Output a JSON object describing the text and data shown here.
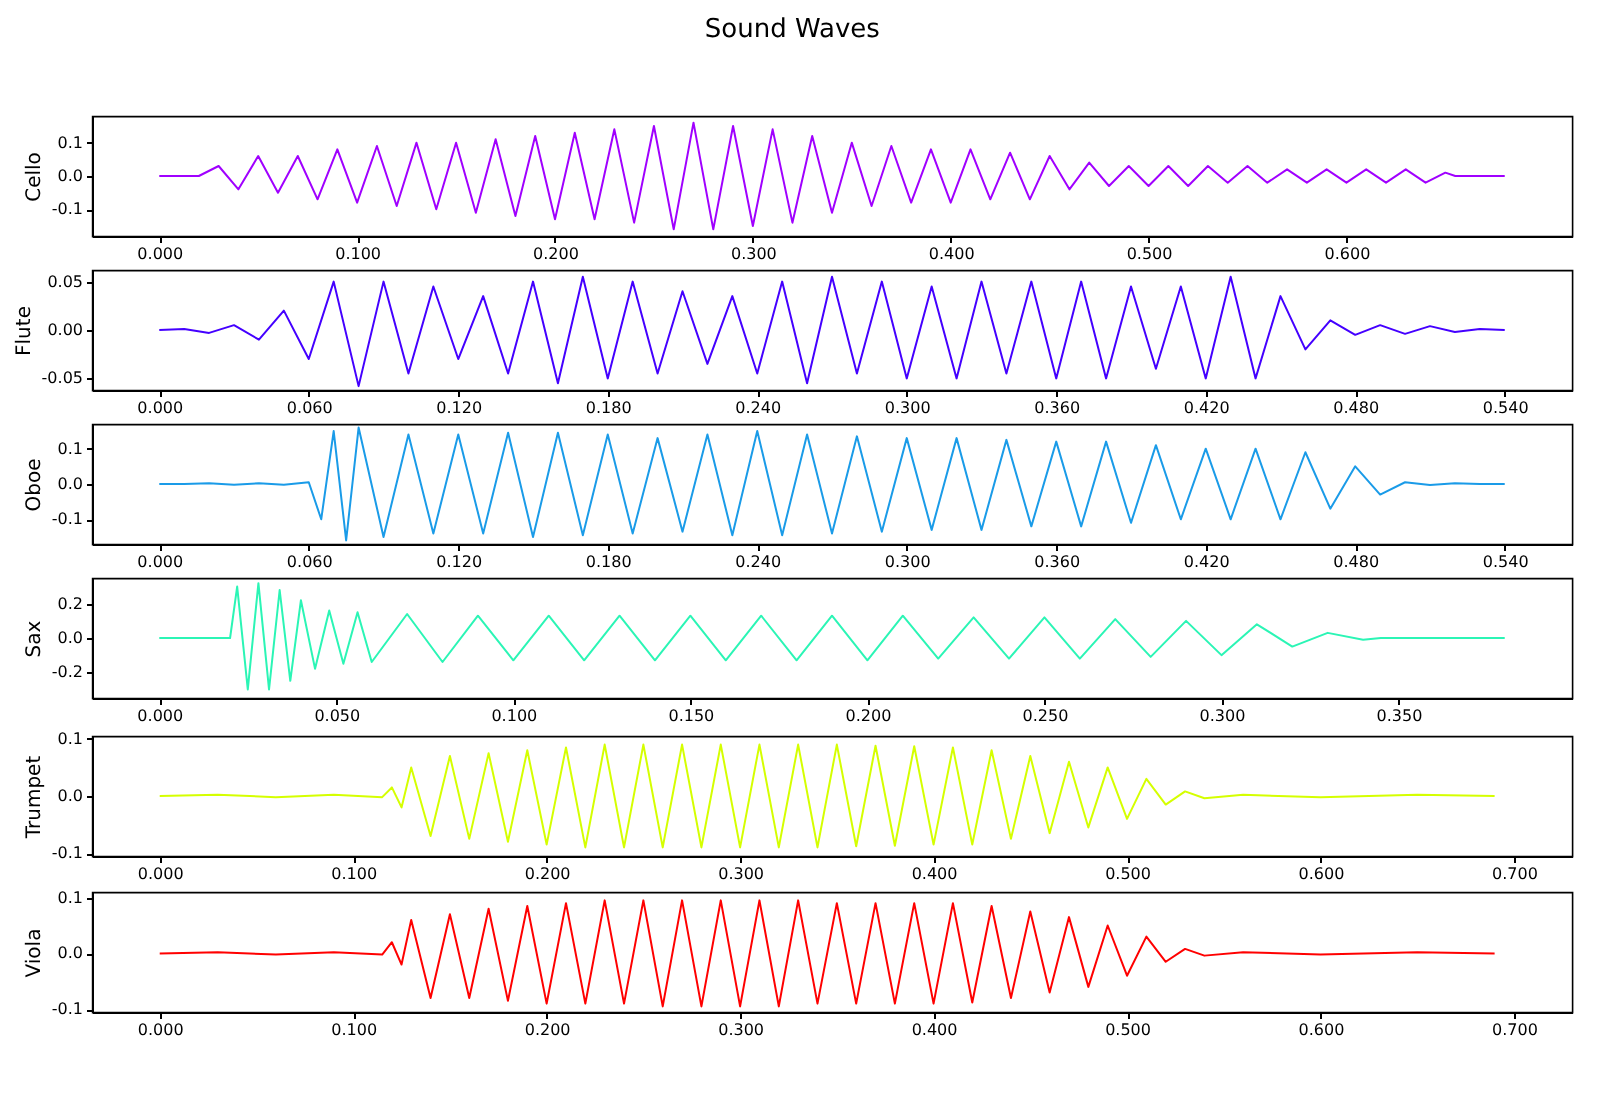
{
  "chart_data": [
    {
      "type": "line",
      "title": "Sound Waves",
      "ylabel": "Cello",
      "grid": false,
      "marker": "none",
      "line_style": "solid",
      "series": [
        {
          "color": "#a000ff",
          "x": [
            0,
            0.02,
            0.03,
            0.04,
            0.05,
            0.06,
            0.07,
            0.08,
            0.09,
            0.1,
            0.11,
            0.12,
            0.13,
            0.14,
            0.15,
            0.16,
            0.17,
            0.18,
            0.19,
            0.2,
            0.21,
            0.22,
            0.23,
            0.24,
            0.25,
            0.26,
            0.27,
            0.28,
            0.29,
            0.3,
            0.31,
            0.32,
            0.33,
            0.34,
            0.35,
            0.36,
            0.37,
            0.38,
            0.39,
            0.4,
            0.41,
            0.42,
            0.43,
            0.44,
            0.45,
            0.46,
            0.47,
            0.48,
            0.49,
            0.5,
            0.51,
            0.52,
            0.53,
            0.54,
            0.55,
            0.56,
            0.57,
            0.58,
            0.59,
            0.6,
            0.61,
            0.62,
            0.63,
            0.64,
            0.65,
            0.655,
            0.68
          ],
          "values": [
            0,
            0,
            0.03,
            -0.04,
            0.06,
            -0.05,
            0.06,
            -0.07,
            0.08,
            -0.08,
            0.09,
            -0.09,
            0.1,
            -0.1,
            0.1,
            -0.11,
            0.11,
            -0.12,
            0.12,
            -0.13,
            0.13,
            -0.13,
            0.14,
            -0.14,
            0.15,
            -0.16,
            0.16,
            -0.16,
            0.15,
            -0.15,
            0.14,
            -0.14,
            0.12,
            -0.11,
            0.1,
            -0.09,
            0.09,
            -0.08,
            0.08,
            -0.08,
            0.08,
            -0.07,
            0.07,
            -0.07,
            0.06,
            -0.04,
            0.04,
            -0.03,
            0.03,
            -0.03,
            0.03,
            -0.03,
            0.03,
            -0.02,
            0.03,
            -0.02,
            0.02,
            -0.02,
            0.02,
            -0.02,
            0.02,
            -0.02,
            0.02,
            -0.02,
            0.01,
            0,
            0
          ]
        }
      ],
      "xlim": [
        -0.034,
        0.714
      ],
      "ylim": [
        -0.18,
        0.18
      ],
      "xticks": [
        {
          "value": 0,
          "label": "0.000"
        },
        {
          "value": 0.1,
          "label": "0.100"
        },
        {
          "value": 0.2,
          "label": "0.200"
        },
        {
          "value": 0.3,
          "label": "0.300"
        },
        {
          "value": 0.4,
          "label": "0.400"
        },
        {
          "value": 0.5,
          "label": "0.500"
        },
        {
          "value": 0.6,
          "label": "0.600"
        }
      ],
      "yticks": [
        {
          "value": -0.1,
          "label": "-0.1"
        },
        {
          "value": 0,
          "label": "0.0"
        },
        0.1
      ]
    },
    {
      "type": "line",
      "ylabel": "Flute",
      "grid": false,
      "marker": "none",
      "line_style": "solid",
      "series": [
        {
          "color": "#4400ff",
          "x": [
            0,
            0.01,
            0.02,
            0.03,
            0.04,
            0.05,
            0.06,
            0.07,
            0.08,
            0.09,
            0.1,
            0.11,
            0.12,
            0.13,
            0.14,
            0.15,
            0.16,
            0.17,
            0.18,
            0.19,
            0.2,
            0.21,
            0.22,
            0.23,
            0.24,
            0.25,
            0.26,
            0.27,
            0.28,
            0.29,
            0.3,
            0.31,
            0.32,
            0.33,
            0.34,
            0.35,
            0.36,
            0.37,
            0.38,
            0.39,
            0.4,
            0.41,
            0.42,
            0.43,
            0.44,
            0.45,
            0.46,
            0.47,
            0.48,
            0.49,
            0.5,
            0.51,
            0.52,
            0.53,
            0.54
          ],
          "values": [
            0,
            0.001,
            -0.003,
            0.005,
            -0.01,
            0.02,
            -0.03,
            0.05,
            -0.058,
            0.05,
            -0.045,
            0.045,
            -0.03,
            0.035,
            -0.045,
            0.05,
            -0.055,
            0.055,
            -0.05,
            0.05,
            -0.045,
            0.04,
            -0.035,
            0.035,
            -0.045,
            0.05,
            -0.055,
            0.055,
            -0.045,
            0.05,
            -0.05,
            0.045,
            -0.05,
            0.05,
            -0.045,
            0.05,
            -0.05,
            0.05,
            -0.05,
            0.045,
            -0.04,
            0.045,
            -0.05,
            0.055,
            -0.05,
            0.035,
            -0.02,
            0.01,
            -0.005,
            0.005,
            -0.004,
            0.004,
            -0.002,
            0.001,
            0
          ]
        }
      ],
      "xlim": [
        -0.027,
        0.567
      ],
      "ylim": [
        -0.062,
        0.062
      ],
      "xticks": [
        {
          "value": 0,
          "label": "0.000"
        },
        {
          "value": 0.06,
          "label": "0.060"
        },
        {
          "value": 0.12,
          "label": "0.120"
        },
        {
          "value": 0.18,
          "label": "0.180"
        },
        {
          "value": 0.24,
          "label": "0.240"
        },
        {
          "value": 0.3,
          "label": "0.300"
        },
        {
          "value": 0.36,
          "label": "0.360"
        },
        {
          "value": 0.42,
          "label": "0.420"
        },
        {
          "value": 0.48,
          "label": "0.480"
        },
        {
          "value": 0.54,
          "label": "0.540"
        }
      ],
      "yticks": [
        {
          "value": -0.05,
          "label": "-0.05"
        },
        {
          "value": 0,
          "label": "0.00"
        },
        0.05
      ]
    },
    {
      "type": "line",
      "ylabel": "Oboe",
      "grid": false,
      "marker": "none",
      "line_style": "solid",
      "series": [
        {
          "color": "#1a9be8",
          "x": [
            0,
            0.01,
            0.02,
            0.03,
            0.04,
            0.05,
            0.06,
            0.065,
            0.07,
            0.075,
            0.08,
            0.09,
            0.1,
            0.11,
            0.12,
            0.13,
            0.14,
            0.15,
            0.16,
            0.17,
            0.18,
            0.19,
            0.2,
            0.21,
            0.22,
            0.23,
            0.24,
            0.25,
            0.26,
            0.27,
            0.28,
            0.29,
            0.3,
            0.31,
            0.32,
            0.33,
            0.34,
            0.35,
            0.36,
            0.37,
            0.38,
            0.39,
            0.4,
            0.41,
            0.42,
            0.43,
            0.44,
            0.45,
            0.46,
            0.47,
            0.48,
            0.49,
            0.5,
            0.51,
            0.52,
            0.53,
            0.54
          ],
          "values": [
            0,
            0,
            0.002,
            -0.002,
            0.002,
            -0.002,
            0.005,
            -0.1,
            0.15,
            -0.16,
            0.16,
            -0.15,
            0.14,
            -0.14,
            0.14,
            -0.14,
            0.145,
            -0.15,
            0.145,
            -0.145,
            0.14,
            -0.14,
            0.13,
            -0.135,
            0.14,
            -0.145,
            0.15,
            -0.145,
            0.14,
            -0.14,
            0.135,
            -0.135,
            0.13,
            -0.13,
            0.13,
            -0.13,
            0.125,
            -0.12,
            0.12,
            -0.12,
            0.12,
            -0.11,
            0.11,
            -0.1,
            0.1,
            -0.1,
            0.1,
            -0.1,
            0.09,
            -0.07,
            0.05,
            -0.03,
            0.005,
            -0.003,
            0.002,
            0,
            0
          ]
        }
      ],
      "xlim": [
        -0.027,
        0.567
      ],
      "ylim": [
        -0.17,
        0.17
      ],
      "xticks": [
        {
          "value": 0,
          "label": "0.000"
        },
        {
          "value": 0.06,
          "label": "0.060"
        },
        {
          "value": 0.12,
          "label": "0.120"
        },
        {
          "value": 0.18,
          "label": "0.180"
        },
        {
          "value": 0.24,
          "label": "0.240"
        },
        {
          "value": 0.3,
          "label": "0.300"
        },
        {
          "value": 0.36,
          "label": "0.360"
        },
        {
          "value": 0.42,
          "label": "0.420"
        },
        {
          "value": 0.48,
          "label": "0.480"
        },
        {
          "value": 0.54,
          "label": "0.540"
        }
      ],
      "yticks": [
        {
          "value": -0.1,
          "label": "-0.1"
        },
        {
          "value": 0,
          "label": "0.0"
        },
        0.1
      ]
    },
    {
      "type": "line",
      "ylabel": "Sax",
      "grid": false,
      "marker": "none",
      "line_style": "solid",
      "series": [
        {
          "color": "#2bf5b5",
          "x": [
            0,
            0.02,
            0.022,
            0.025,
            0.028,
            0.031,
            0.034,
            0.037,
            0.04,
            0.044,
            0.048,
            0.052,
            0.056,
            0.06,
            0.07,
            0.08,
            0.09,
            0.1,
            0.11,
            0.12,
            0.13,
            0.14,
            0.15,
            0.16,
            0.17,
            0.18,
            0.19,
            0.2,
            0.21,
            0.22,
            0.23,
            0.24,
            0.25,
            0.26,
            0.27,
            0.28,
            0.29,
            0.3,
            0.31,
            0.32,
            0.33,
            0.34,
            0.345,
            0.38
          ],
          "values": [
            0,
            0,
            0.3,
            -0.3,
            0.32,
            -0.3,
            0.28,
            -0.25,
            0.22,
            -0.18,
            0.16,
            -0.15,
            0.15,
            -0.14,
            0.14,
            -0.14,
            0.13,
            -0.13,
            0.13,
            -0.13,
            0.13,
            -0.13,
            0.13,
            -0.13,
            0.13,
            -0.13,
            0.13,
            -0.13,
            0.13,
            -0.12,
            0.12,
            -0.12,
            0.12,
            -0.12,
            0.11,
            -0.11,
            0.1,
            -0.1,
            0.08,
            -0.05,
            0.03,
            -0.01,
            0,
            0
          ]
        }
      ],
      "xlim": [
        -0.019,
        0.399
      ],
      "ylim": [
        -0.35,
        0.35
      ],
      "xticks": [
        {
          "value": 0,
          "label": "0.000"
        },
        {
          "value": 0.05,
          "label": "0.050"
        },
        {
          "value": 0.1,
          "label": "0.100"
        },
        {
          "value": 0.15,
          "label": "0.150"
        },
        {
          "value": 0.2,
          "label": "0.200"
        },
        {
          "value": 0.25,
          "label": "0.250"
        },
        {
          "value": 0.3,
          "label": "0.300"
        },
        {
          "value": 0.35,
          "label": "0.350"
        }
      ],
      "yticks": [
        {
          "value": -0.2,
          "label": "-0.2"
        },
        {
          "value": 0,
          "label": "0.0"
        },
        0.2
      ]
    },
    {
      "type": "line",
      "ylabel": "Trumpet",
      "grid": false,
      "marker": "none",
      "line_style": "solid",
      "series": [
        {
          "color": "#d5ff00",
          "x": [
            0,
            0.03,
            0.06,
            0.09,
            0.115,
            0.12,
            0.125,
            0.13,
            0.14,
            0.15,
            0.16,
            0.17,
            0.18,
            0.19,
            0.2,
            0.21,
            0.22,
            0.23,
            0.24,
            0.25,
            0.26,
            0.27,
            0.28,
            0.29,
            0.3,
            0.31,
            0.32,
            0.33,
            0.34,
            0.35,
            0.36,
            0.37,
            0.38,
            0.39,
            0.4,
            0.41,
            0.42,
            0.43,
            0.44,
            0.45,
            0.46,
            0.47,
            0.48,
            0.49,
            0.5,
            0.51,
            0.52,
            0.53,
            0.54,
            0.56,
            0.6,
            0.65,
            0.69
          ],
          "values": [
            0,
            0.002,
            -0.002,
            0.002,
            -0.002,
            0.015,
            -0.02,
            0.05,
            -0.07,
            0.07,
            -0.075,
            0.075,
            -0.08,
            0.08,
            -0.085,
            0.085,
            -0.09,
            0.09,
            -0.09,
            0.09,
            -0.09,
            0.09,
            -0.09,
            0.09,
            -0.09,
            0.09,
            -0.09,
            0.09,
            -0.09,
            0.09,
            -0.088,
            0.088,
            -0.087,
            0.087,
            -0.085,
            0.085,
            -0.085,
            0.08,
            -0.075,
            0.07,
            -0.065,
            0.06,
            -0.055,
            0.05,
            -0.04,
            0.03,
            -0.015,
            0.008,
            -0.004,
            0.002,
            -0.002,
            0.002,
            0
          ]
        }
      ],
      "xlim": [
        -0.035,
        0.73
      ],
      "ylim": [
        -0.105,
        0.105
      ],
      "xticks": [
        {
          "value": 0,
          "label": "0.000"
        },
        {
          "value": 0.1,
          "label": "0.100"
        },
        {
          "value": 0.2,
          "label": "0.200"
        },
        {
          "value": 0.3,
          "label": "0.300"
        },
        {
          "value": 0.4,
          "label": "0.400"
        },
        {
          "value": 0.5,
          "label": "0.500"
        },
        {
          "value": 0.6,
          "label": "0.600"
        },
        {
          "value": 0.7,
          "label": "0.700"
        }
      ],
      "yticks": [
        {
          "value": -0.1,
          "label": "-0.1"
        },
        {
          "value": 0,
          "label": "0.0"
        },
        0.1
      ]
    },
    {
      "type": "line",
      "ylabel": "Viola",
      "grid": false,
      "marker": "none",
      "line_style": "solid",
      "series": [
        {
          "color": "#ff0000",
          "x": [
            0,
            0.03,
            0.06,
            0.09,
            0.115,
            0.12,
            0.125,
            0.13,
            0.14,
            0.15,
            0.16,
            0.17,
            0.18,
            0.19,
            0.2,
            0.21,
            0.22,
            0.23,
            0.24,
            0.25,
            0.26,
            0.27,
            0.28,
            0.29,
            0.3,
            0.31,
            0.32,
            0.33,
            0.34,
            0.35,
            0.36,
            0.37,
            0.38,
            0.39,
            0.4,
            0.41,
            0.42,
            0.43,
            0.44,
            0.45,
            0.46,
            0.47,
            0.48,
            0.49,
            0.5,
            0.51,
            0.52,
            0.53,
            0.54,
            0.56,
            0.6,
            0.65,
            0.69
          ],
          "values": [
            0,
            0.002,
            -0.002,
            0.002,
            -0.002,
            0.02,
            -0.02,
            0.06,
            -0.08,
            0.07,
            -0.08,
            0.08,
            -0.085,
            0.085,
            -0.09,
            0.09,
            -0.09,
            0.095,
            -0.09,
            0.095,
            -0.095,
            0.095,
            -0.095,
            0.095,
            -0.095,
            0.095,
            -0.095,
            0.095,
            -0.09,
            0.09,
            -0.09,
            0.09,
            -0.09,
            0.09,
            -0.09,
            0.09,
            -0.088,
            0.085,
            -0.08,
            0.075,
            -0.07,
            0.065,
            -0.06,
            0.05,
            -0.04,
            0.03,
            -0.015,
            0.008,
            -0.004,
            0.002,
            -0.002,
            0.002,
            0
          ]
        }
      ],
      "xlim": [
        -0.035,
        0.73
      ],
      "ylim": [
        -0.105,
        0.11
      ],
      "xticks": [
        {
          "value": 0,
          "label": "0.000"
        },
        {
          "value": 0.1,
          "label": "0.100"
        },
        {
          "value": 0.2,
          "label": "0.200"
        },
        {
          "value": 0.3,
          "label": "0.300"
        },
        {
          "value": 0.4,
          "label": "0.400"
        },
        {
          "value": 0.5,
          "label": "0.500"
        },
        {
          "value": 0.6,
          "label": "0.600"
        },
        {
          "value": 0.7,
          "label": "0.700"
        }
      ],
      "yticks": [
        {
          "value": -0.1,
          "label": "-0.1"
        },
        {
          "value": 0,
          "label": "0.0"
        },
        0.1
      ]
    }
  ]
}
